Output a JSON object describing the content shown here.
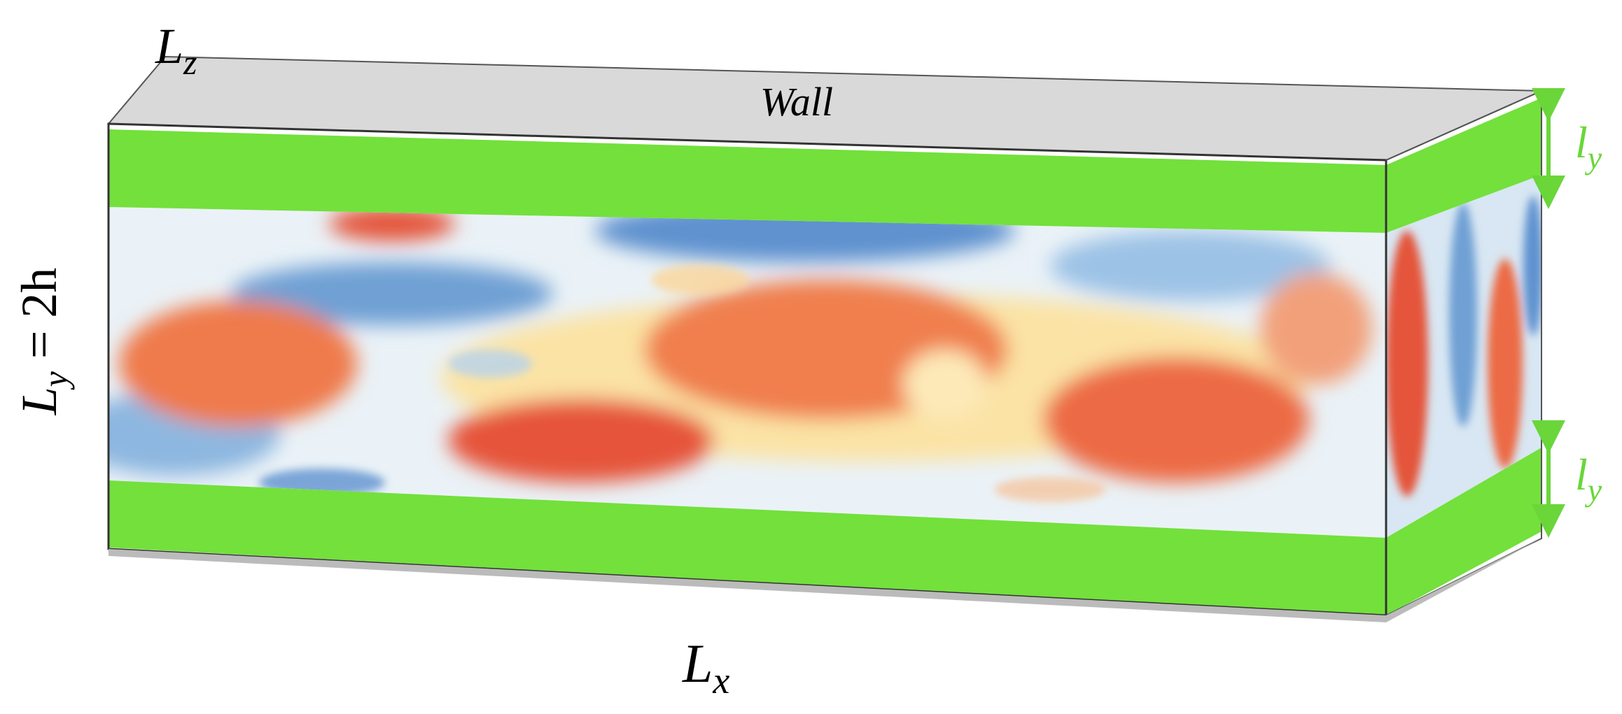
{
  "labels": {
    "lz": {
      "symbol": "L",
      "subscript": "z"
    },
    "wall": "Wall",
    "ly": {
      "symbol": "L",
      "subscript": "y",
      "rest": " = 2h"
    },
    "ly_top": {
      "symbol": "l",
      "subscript": "y"
    },
    "ly_bottom": {
      "symbol": "l",
      "subscript": "y"
    },
    "lx": {
      "symbol": "L",
      "subscript": "x"
    }
  }
}
